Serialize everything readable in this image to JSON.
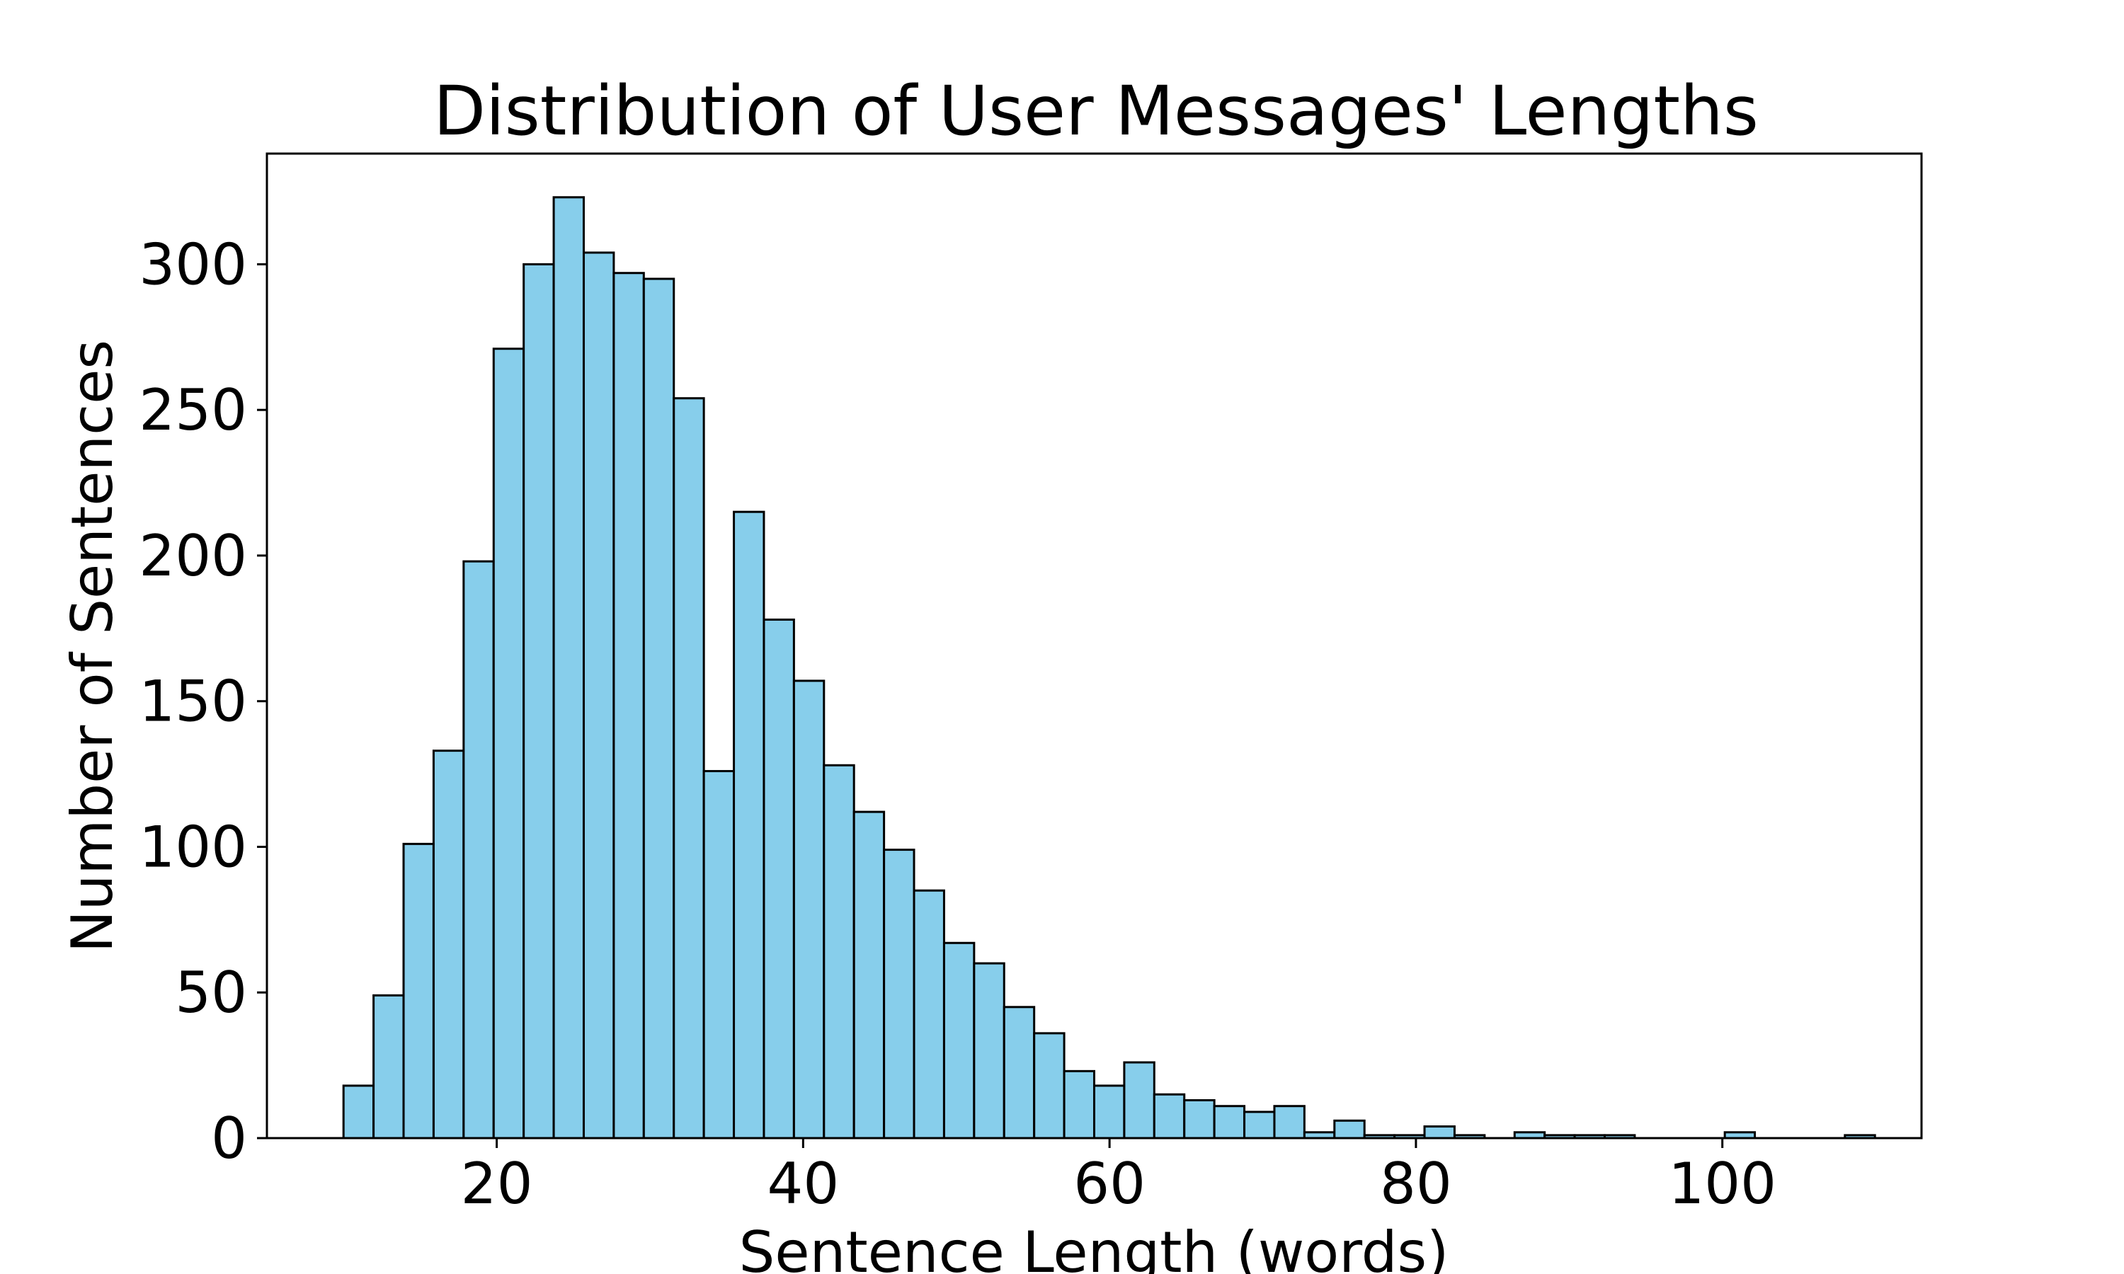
{
  "chart_data": {
    "type": "bar",
    "subtype": "histogram",
    "title": "Distribution of User Messages' Lengths",
    "xlabel": "Sentence Length (words)",
    "ylabel": "Number of Sentences",
    "xlim": [
      5,
      113
    ],
    "ylim": [
      0,
      338
    ],
    "xticks": [
      20,
      40,
      60,
      80,
      100
    ],
    "yticks": [
      0,
      50,
      100,
      150,
      200,
      250,
      300
    ],
    "grid": false,
    "legend": "none",
    "bar_color": "#87CEEB",
    "edge_color": "#000000",
    "bin_start": 10,
    "bin_width": 1.96,
    "values": [
      18,
      49,
      101,
      133,
      198,
      271,
      300,
      323,
      304,
      297,
      295,
      254,
      126,
      215,
      178,
      157,
      128,
      112,
      99,
      85,
      67,
      60,
      45,
      36,
      23,
      18,
      26,
      15,
      13,
      11,
      9,
      11,
      2,
      6,
      1,
      1,
      4,
      1,
      0,
      2,
      1,
      1,
      1,
      0,
      0,
      0,
      2,
      0,
      0,
      0,
      1
    ]
  }
}
